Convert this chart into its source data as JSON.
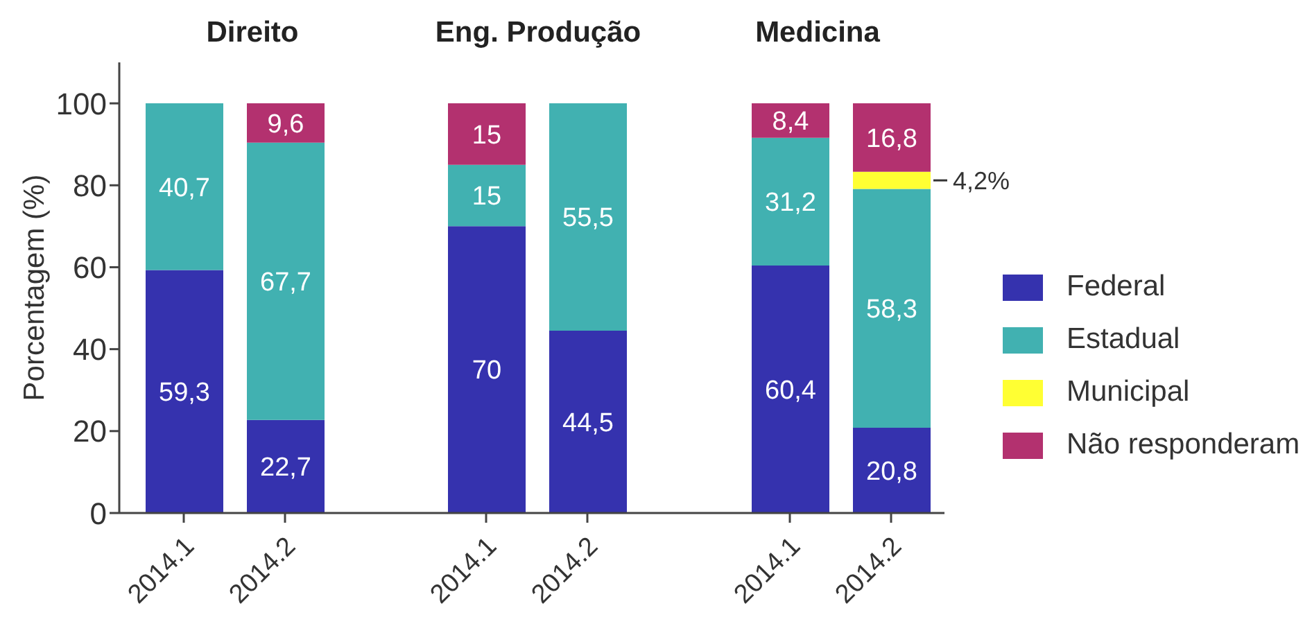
{
  "chart_data": [
    {
      "type": "bar",
      "title": "Direito",
      "ylabel": "Porcentagem (%)",
      "categories": [
        "2014.1",
        "2014.2"
      ],
      "stacked": true,
      "ylim": [
        0,
        110
      ],
      "yticks": [
        0,
        20,
        40,
        60,
        80,
        100
      ],
      "grid": false,
      "series": [
        {
          "color": "#3532ae",
          "values": [
            59.3,
            22.7
          ],
          "value_labels": [
            "59,3",
            "22,7"
          ]
        },
        {
          "color": "#41b1b1",
          "values": [
            40.7,
            67.7
          ],
          "value_labels": [
            "40,7",
            "67,7"
          ]
        },
        {
          "color": "#ffff33",
          "values": [
            null,
            null
          ],
          "value_labels": [
            null,
            null
          ]
        },
        {
          "color": "#b3316f",
          "values": [
            null,
            9.6
          ],
          "value_labels": [
            null,
            "9,6"
          ]
        }
      ]
    },
    {
      "type": "bar",
      "title": "Eng. Produção",
      "categories": [
        "2014.1",
        "2014.2"
      ],
      "stacked": true,
      "ylim": [
        0,
        100
      ],
      "tick_labels": "x",
      "grid": false,
      "series": [
        {
          "color": "#3532ae",
          "values": [
            70,
            44.5
          ],
          "value_labels": [
            "70",
            "44,5"
          ]
        },
        {
          "color": "#41b1b1",
          "values": [
            15,
            55.5
          ],
          "value_labels": [
            "15",
            "55,5"
          ]
        },
        {
          "color": "#ffff33",
          "values": [
            null,
            null
          ],
          "value_labels": [
            null,
            null
          ]
        },
        {
          "color": "#b3316f",
          "values": [
            15,
            null
          ],
          "value_labels": [
            "15",
            null
          ]
        }
      ]
    },
    {
      "type": "bar",
      "title": "Medicina",
      "categories": [
        "2014.1",
        "2014.2"
      ],
      "stacked": true,
      "ylim": [
        0,
        100
      ],
      "tick_labels": "x",
      "grid": false,
      "legend": "right",
      "series": [
        {
          "name": "Federal",
          "color": "#3532ae",
          "values": [
            60.4,
            20.8
          ],
          "value_labels": [
            "60,4",
            "20,8"
          ]
        },
        {
          "name": "Estadual",
          "color": "#41b1b1",
          "values": [
            31.2,
            58.3
          ],
          "value_labels": [
            "31,2",
            "58,3"
          ]
        },
        {
          "name": "Municipal",
          "color": "#ffff33",
          "values": [
            null,
            4.2
          ],
          "value_labels": [
            null,
            "4,2%"
          ]
        },
        {
          "name": "Não responderam",
          "color": "#b3316f",
          "values": [
            8.4,
            16.8
          ],
          "value_labels": [
            "8,4",
            "16,8"
          ]
        }
      ]
    }
  ]
}
